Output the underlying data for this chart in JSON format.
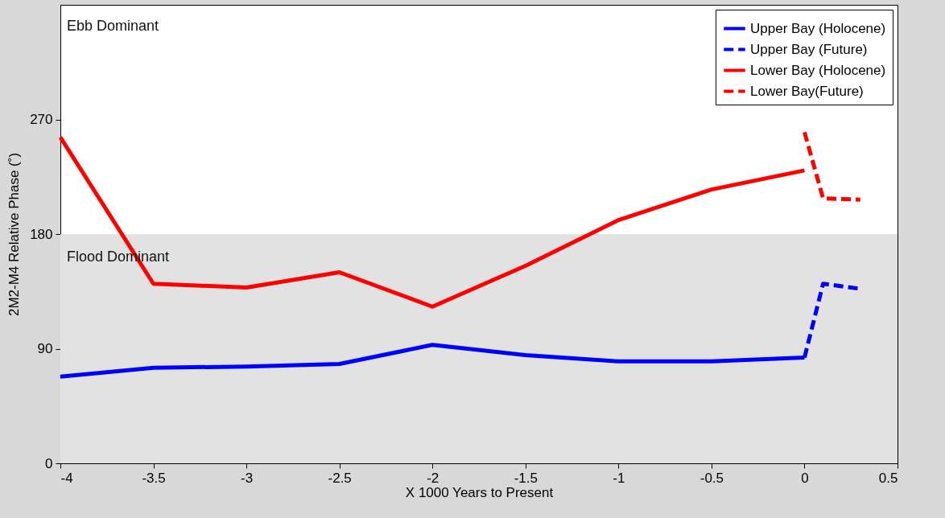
{
  "chart_data": {
    "type": "line",
    "xlabel": "X 1000 Years to Present",
    "ylabel": "2M2-M4 Relative Phase (˚)",
    "xlim": [
      -4,
      0.5
    ],
    "xticks": [
      -4,
      -3.5,
      -3,
      -2.5,
      -2,
      -1.5,
      -1,
      -0.5,
      0,
      0.5
    ],
    "ylim": [
      0,
      360
    ],
    "yticks": [
      0,
      90,
      180,
      270
    ],
    "grid": false,
    "legend": "top right",
    "marker": "none",
    "bands": [
      {
        "axis": "y",
        "from": 0,
        "to": 180,
        "label": "Flood Dominant",
        "color": "#e2e2e2"
      }
    ],
    "annotations": [
      "Ebb Dominant"
    ],
    "series": [
      {
        "name": "Upper Bay (Holocene)",
        "color": "#0000ff",
        "line_style": "solid",
        "x": [
          -4,
          -3.5,
          -3,
          -2.5,
          -2,
          -1.5,
          -1,
          -0.5,
          0
        ],
        "values": [
          68,
          75,
          76,
          78,
          93,
          85,
          80,
          80,
          83
        ]
      },
      {
        "name": "Upper Bay (Future)",
        "color": "#0000ff",
        "line_style": "dashed",
        "x": [
          0,
          0.1,
          0.3
        ],
        "values": [
          83,
          141,
          137
        ]
      },
      {
        "name": "Lower Bay (Holocene)",
        "color": "#ff0000",
        "line_style": "solid",
        "x": [
          -4,
          -3.5,
          -3,
          -2.5,
          -2,
          -1.5,
          -1,
          -0.5,
          0
        ],
        "values": [
          256,
          141,
          138,
          150,
          123,
          155,
          191,
          215,
          230
        ]
      },
      {
        "name": "Lower Bay(Future)",
        "color": "#ff0000",
        "line_style": "dashed",
        "x": [
          0,
          0.1,
          0.3
        ],
        "values": [
          260,
          208,
          207
        ]
      }
    ]
  }
}
